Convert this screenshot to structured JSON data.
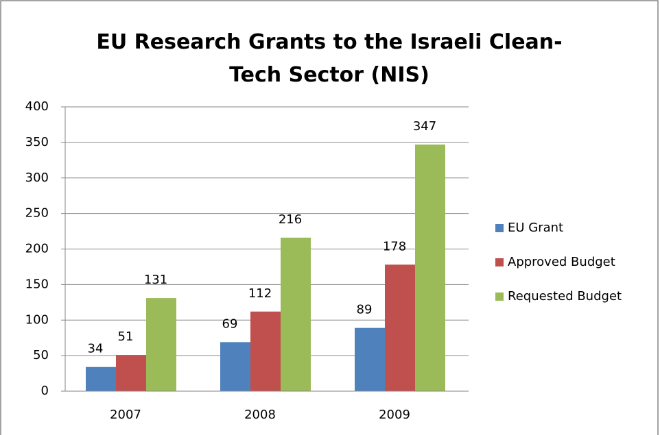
{
  "chart_data": {
    "type": "bar",
    "title": "EU Research Grants to the Israeli Clean- Tech Sector (NIS)",
    "categories": [
      "2007",
      "2008",
      "2009"
    ],
    "series": [
      {
        "name": "EU Grant",
        "color": "#4f81bd",
        "values": [
          34,
          69,
          89
        ]
      },
      {
        "name": "Approved Budget",
        "color": "#c0504d",
        "values": [
          51,
          112,
          178
        ]
      },
      {
        "name": "Requested Budget",
        "color": "#9bbb59",
        "values": [
          131,
          216,
          347
        ]
      }
    ],
    "ylim": [
      0,
      400
    ],
    "yticks": [
      0,
      50,
      100,
      150,
      200,
      250,
      300,
      350,
      400
    ],
    "grid": true,
    "legend": "right"
  }
}
